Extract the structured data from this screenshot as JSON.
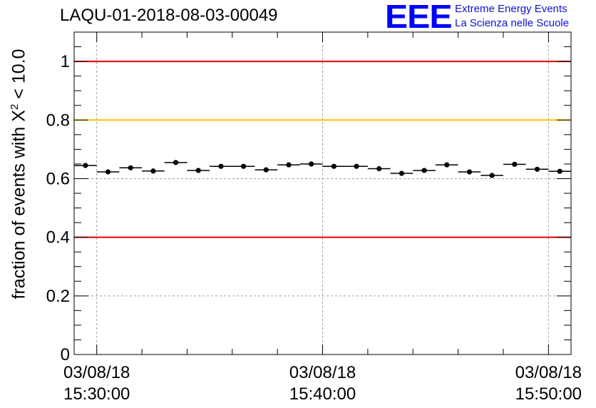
{
  "title": "LAQU-01-2018-08-03-00049",
  "logo": {
    "mark": "EEE",
    "line1": "Extreme Energy Events",
    "line2": "La Scienza nelle Scuole",
    "color": "#0000ff"
  },
  "chart_data": {
    "type": "scatter",
    "title": "LAQU-01-2018-08-03-00049",
    "ylabel_prefix": "fraction of events with X",
    "ylabel_sup": "2",
    "ylabel_suffix": " < 10.0",
    "ylim": [
      0,
      1.1
    ],
    "xlim_minutes": [
      0,
      22
    ],
    "y_ticks": [
      {
        "value": 0,
        "label": "0"
      },
      {
        "value": 0.2,
        "label": "0.2"
      },
      {
        "value": 0.4,
        "label": "0.4"
      },
      {
        "value": 0.6,
        "label": "0.6"
      },
      {
        "value": 0.8,
        "label": "0.8"
      },
      {
        "value": 1.0,
        "label": "1"
      }
    ],
    "x_ticks": [
      {
        "minute": 1,
        "date": "03/08/18",
        "time": "15:30:00"
      },
      {
        "minute": 11,
        "date": "03/08/18",
        "time": "15:40:00"
      },
      {
        "minute": 21,
        "date": "03/08/18",
        "time": "15:50:00"
      }
    ],
    "reference_lines": [
      {
        "y": 1.0,
        "color": "#e00000"
      },
      {
        "y": 0.8,
        "color": "#ffc000"
      },
      {
        "y": 0.4,
        "color": "#e00000"
      }
    ],
    "grid": true,
    "marker_color": "#000000",
    "points": [
      {
        "x": 0.5,
        "y": 0.645
      },
      {
        "x": 1.5,
        "y": 0.623
      },
      {
        "x": 2.5,
        "y": 0.637
      },
      {
        "x": 3.5,
        "y": 0.626
      },
      {
        "x": 4.5,
        "y": 0.655
      },
      {
        "x": 5.5,
        "y": 0.628
      },
      {
        "x": 6.5,
        "y": 0.642
      },
      {
        "x": 7.5,
        "y": 0.642
      },
      {
        "x": 8.5,
        "y": 0.63
      },
      {
        "x": 9.5,
        "y": 0.647
      },
      {
        "x": 10.5,
        "y": 0.65
      },
      {
        "x": 11.5,
        "y": 0.642
      },
      {
        "x": 12.5,
        "y": 0.642
      },
      {
        "x": 13.5,
        "y": 0.634
      },
      {
        "x": 14.5,
        "y": 0.618
      },
      {
        "x": 15.5,
        "y": 0.628
      },
      {
        "x": 16.5,
        "y": 0.647
      },
      {
        "x": 17.5,
        "y": 0.623
      },
      {
        "x": 18.5,
        "y": 0.611
      },
      {
        "x": 19.5,
        "y": 0.649
      },
      {
        "x": 20.5,
        "y": 0.632
      },
      {
        "x": 21.5,
        "y": 0.625
      }
    ]
  }
}
